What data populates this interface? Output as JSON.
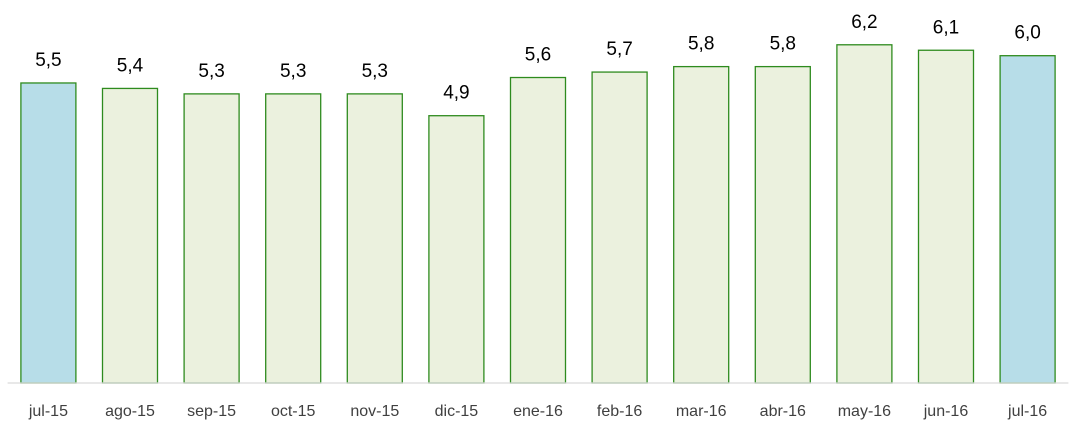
{
  "chart_data": {
    "type": "bar",
    "categories": [
      "jul-15",
      "ago-15",
      "sep-15",
      "oct-15",
      "nov-15",
      "dic-15",
      "ene-16",
      "feb-16",
      "mar-16",
      "abr-16",
      "may-16",
      "jun-16",
      "jul-16"
    ],
    "values": [
      5.5,
      5.4,
      5.3,
      5.3,
      5.3,
      4.9,
      5.6,
      5.7,
      5.8,
      5.8,
      6.2,
      6.1,
      6.0
    ],
    "value_labels": [
      "5,5",
      "5,4",
      "5,3",
      "5,3",
      "5,3",
      "4,9",
      "5,6",
      "5,7",
      "5,8",
      "5,8",
      "6,2",
      "6,1",
      "6,0"
    ],
    "colors": [
      "#b7dde8",
      "#ebf1de",
      "#ebf1de",
      "#ebf1de",
      "#ebf1de",
      "#ebf1de",
      "#ebf1de",
      "#ebf1de",
      "#ebf1de",
      "#ebf1de",
      "#ebf1de",
      "#ebf1de",
      "#b7dde8"
    ],
    "edge_color": "#2e8b1e",
    "ylim": [
      0,
      7
    ]
  }
}
